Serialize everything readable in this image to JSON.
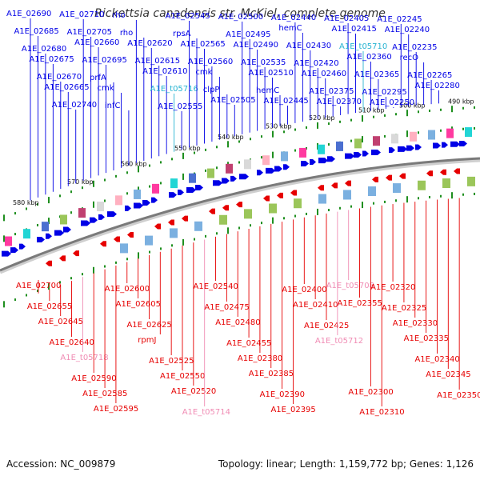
{
  "title": "Rickettsia canadensis str. McKiel, complete genome",
  "accession": "Accession: NC_009879",
  "summary": "Topology: linear; Length: 1,159,772 bp; Genes: 1,126",
  "colors": {
    "forward": "#0000e6",
    "reverse": "#e60000",
    "trna": "#28b4d2",
    "pseudo": "#f08cb4",
    "backbone": "#7a7a7a",
    "tick": "#1f8f1f"
  },
  "kbp_ticks": [
    "580 kbp",
    "570 kbp",
    "560 kbp",
    "550 kbp",
    "540 kbp",
    "530 kbp",
    "520 kbp",
    "510 kbp",
    "500 kbp",
    "490 kbp"
  ],
  "top_labels": [
    {
      "text": "A1E_02690",
      "type": "forward"
    },
    {
      "text": "A1E_02685",
      "type": "forward"
    },
    {
      "text": "A1E_02680",
      "type": "forward"
    },
    {
      "text": "A1E_02675",
      "type": "forward"
    },
    {
      "text": "A1E_02670",
      "type": "forward"
    },
    {
      "text": "A1E_02665",
      "type": "forward"
    },
    {
      "text": "A1E_02740",
      "type": "forward"
    },
    {
      "text": "A1E_02710",
      "type": "forward"
    },
    {
      "text": "A1E_02705",
      "type": "forward"
    },
    {
      "text": "A1E_02660",
      "type": "forward"
    },
    {
      "text": "A1E_02695",
      "type": "forward"
    },
    {
      "text": "prfA",
      "type": "forward"
    },
    {
      "text": "cmk",
      "type": "forward"
    },
    {
      "text": "infC",
      "type": "forward"
    },
    {
      "text": "rho",
      "type": "forward"
    },
    {
      "text": "rho",
      "type": "forward"
    },
    {
      "text": "A1E_02620",
      "type": "forward"
    },
    {
      "text": "A1E_02615",
      "type": "forward"
    },
    {
      "text": "A1E_02610",
      "type": "forward"
    },
    {
      "text": "A1E_t05716",
      "type": "trna"
    },
    {
      "text": "A1E_02555",
      "type": "forward"
    },
    {
      "text": "A1E_02545",
      "type": "forward"
    },
    {
      "text": "rpsA",
      "type": "forward"
    },
    {
      "text": "A1E_02565",
      "type": "forward"
    },
    {
      "text": "A1E_02560",
      "type": "forward"
    },
    {
      "text": "cmk",
      "type": "forward"
    },
    {
      "text": "clpP",
      "type": "forward"
    },
    {
      "text": "A1E_02505",
      "type": "forward"
    },
    {
      "text": "A1E_02500",
      "type": "forward"
    },
    {
      "text": "A1E_02495",
      "type": "forward"
    },
    {
      "text": "A1E_02490",
      "type": "forward"
    },
    {
      "text": "A1E_02535",
      "type": "forward"
    },
    {
      "text": "A1E_02510",
      "type": "forward"
    },
    {
      "text": "hemC",
      "type": "forward"
    },
    {
      "text": "A1E_02445",
      "type": "forward"
    },
    {
      "text": "A1E_02440",
      "type": "forward"
    },
    {
      "text": "hemC",
      "type": "forward"
    },
    {
      "text": "A1E_02430",
      "type": "forward"
    },
    {
      "text": "A1E_02420",
      "type": "forward"
    },
    {
      "text": "A1E_02460",
      "type": "forward"
    },
    {
      "text": "A1E_02375",
      "type": "forward"
    },
    {
      "text": "A1E_02370",
      "type": "forward"
    },
    {
      "text": "A1E_02405",
      "type": "forward"
    },
    {
      "text": "A1E_02415",
      "type": "forward"
    },
    {
      "text": "A1E_t05710",
      "type": "trna"
    },
    {
      "text": "A1E_02360",
      "type": "forward"
    },
    {
      "text": "A1E_02365",
      "type": "forward"
    },
    {
      "text": "A1E_02295",
      "type": "forward"
    },
    {
      "text": "A1E_02250",
      "type": "forward"
    },
    {
      "text": "A1E_02245",
      "type": "forward"
    },
    {
      "text": "A1E_02240",
      "type": "forward"
    },
    {
      "text": "A1E_02235",
      "type": "forward"
    },
    {
      "text": "recO",
      "type": "forward"
    },
    {
      "text": "A1E_02265",
      "type": "forward"
    },
    {
      "text": "A1E_02280",
      "type": "forward"
    }
  ],
  "bottom_labels": [
    {
      "text": "A1E_02700",
      "type": "reverse"
    },
    {
      "text": "A1E_02655",
      "type": "reverse"
    },
    {
      "text": "A1E_02645",
      "type": "reverse"
    },
    {
      "text": "A1E_02640",
      "type": "reverse"
    },
    {
      "text": "A1E_t05718",
      "type": "pseudo"
    },
    {
      "text": "A1E_02590",
      "type": "reverse"
    },
    {
      "text": "A1E_02585",
      "type": "reverse"
    },
    {
      "text": "A1E_02595",
      "type": "reverse"
    },
    {
      "text": "A1E_02600",
      "type": "reverse"
    },
    {
      "text": "A1E_02605",
      "type": "reverse"
    },
    {
      "text": "A1E_02625",
      "type": "reverse"
    },
    {
      "text": "rpmJ",
      "type": "reverse"
    },
    {
      "text": "A1E_02525",
      "type": "reverse"
    },
    {
      "text": "A1E_02550",
      "type": "reverse"
    },
    {
      "text": "A1E_02520",
      "type": "reverse"
    },
    {
      "text": "A1E_t05714",
      "type": "pseudo"
    },
    {
      "text": "A1E_02540",
      "type": "reverse"
    },
    {
      "text": "A1E_02475",
      "type": "reverse"
    },
    {
      "text": "A1E_02480",
      "type": "reverse"
    },
    {
      "text": "A1E_02455",
      "type": "reverse"
    },
    {
      "text": "A1E_02380",
      "type": "reverse"
    },
    {
      "text": "A1E_02385",
      "type": "reverse"
    },
    {
      "text": "A1E_02390",
      "type": "reverse"
    },
    {
      "text": "A1E_02395",
      "type": "reverse"
    },
    {
      "text": "A1E_02400",
      "type": "reverse"
    },
    {
      "text": "A1E_02410",
      "type": "reverse"
    },
    {
      "text": "A1E_02425",
      "type": "reverse"
    },
    {
      "text": "A1E_t05712",
      "type": "pseudo"
    },
    {
      "text": "A1E_t05708",
      "type": "pseudo"
    },
    {
      "text": "A1E_02355",
      "type": "reverse"
    },
    {
      "text": "A1E_02300",
      "type": "reverse"
    },
    {
      "text": "A1E_02310",
      "type": "reverse"
    },
    {
      "text": "A1E_02320",
      "type": "reverse"
    },
    {
      "text": "A1E_02325",
      "type": "reverse"
    },
    {
      "text": "A1E_02330",
      "type": "reverse"
    },
    {
      "text": "A1E_02335",
      "type": "reverse"
    },
    {
      "text": "A1E_02340",
      "type": "reverse"
    },
    {
      "text": "A1E_02345",
      "type": "reverse"
    },
    {
      "text": "A1E_02350",
      "type": "reverse"
    }
  ]
}
